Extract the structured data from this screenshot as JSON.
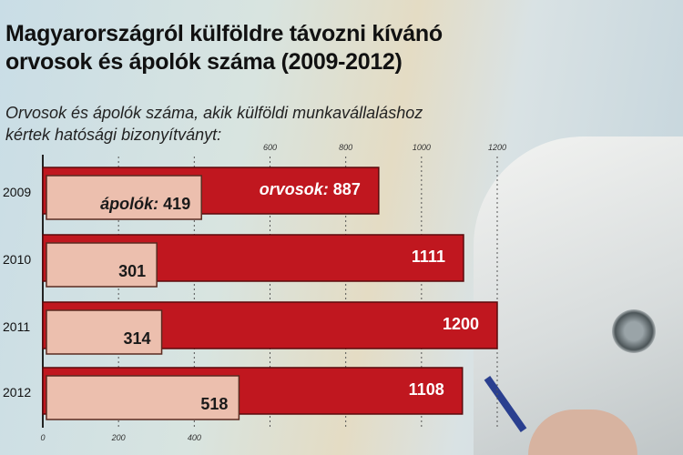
{
  "title_line1": "Magyarországról külföldre távozni kívánó",
  "title_line2": "orvosok és ápolók száma (2009-2012)",
  "subtitle_line1": "Orvosok és ápolók száma, akik külföldi munkavállaláshoz",
  "subtitle_line2": "kértek hatósági bizonyítványt:",
  "chart_data": {
    "type": "bar",
    "orientation": "horizontal",
    "categories": [
      "2009",
      "2010",
      "2011",
      "2012"
    ],
    "series": [
      {
        "name": "orvosok",
        "values": [
          887,
          1111,
          1200,
          1108
        ],
        "color": "#c0171f"
      },
      {
        "name": "ápolók",
        "values": [
          419,
          301,
          314,
          518
        ],
        "color": "#ecbfae"
      }
    ],
    "series_label_prefixes": [
      "orvosok:",
      "ápolók:"
    ],
    "xlim": [
      0,
      1200
    ],
    "ticks_top": [
      600,
      800,
      1000,
      1200
    ],
    "ticks_bottom": [
      0,
      200,
      400
    ],
    "grid": true
  }
}
